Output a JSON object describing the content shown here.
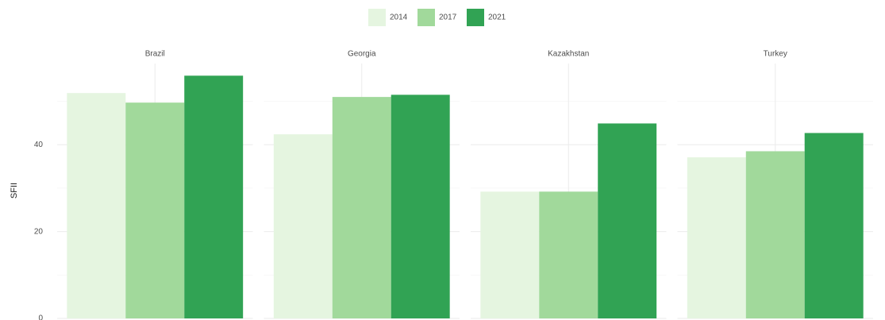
{
  "chart_data": {
    "type": "bar",
    "facet": true,
    "categories": [
      "Brazil",
      "Georgia",
      "Kazakhstan",
      "Turkey"
    ],
    "series": [
      {
        "name": "2014",
        "color": "#e5f5e0",
        "values": [
          51.9,
          42.4,
          29.2,
          37.1
        ]
      },
      {
        "name": "2017",
        "color": "#a1d99b",
        "values": [
          49.7,
          51.0,
          29.2,
          38.5
        ]
      },
      {
        "name": "2021",
        "color": "#31a354",
        "values": [
          55.9,
          51.5,
          44.9,
          42.7
        ]
      }
    ],
    "ylabel": "SFII",
    "ylim": [
      0,
      58.7
    ],
    "yticks": [
      0,
      20,
      40
    ],
    "yminor": [
      10,
      30,
      50
    ],
    "grid": true,
    "legend": "top"
  }
}
